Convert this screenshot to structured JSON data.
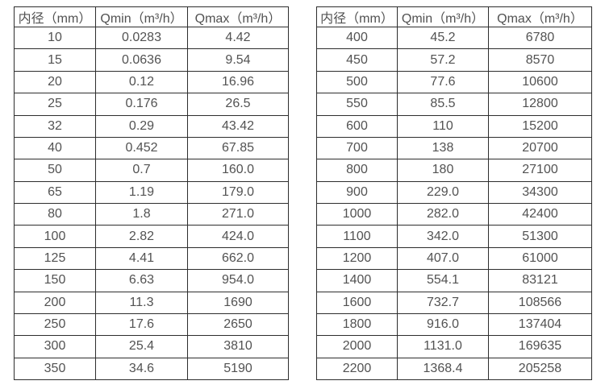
{
  "page": {
    "background_color": "#ffffff",
    "border_color": "#2d2d2d",
    "text_color": "#525252"
  },
  "tables": [
    {
      "name": "small-diameters",
      "headers": [
        "内径（mm）",
        "Qmin（m³/h）",
        "Qmax（m³/h）"
      ],
      "rows": [
        [
          "10",
          "0.0283",
          "4.42"
        ],
        [
          "15",
          "0.0636",
          "9.54"
        ],
        [
          "20",
          "0.12",
          "16.96"
        ],
        [
          "25",
          "0.176",
          "26.5"
        ],
        [
          "32",
          "0.29",
          "43.42"
        ],
        [
          "40",
          "0.452",
          "67.85"
        ],
        [
          "50",
          "0.7",
          "160.0"
        ],
        [
          "65",
          "1.19",
          "179.0"
        ],
        [
          "80",
          "1.8",
          "271.0"
        ],
        [
          "100",
          "2.82",
          "424.0"
        ],
        [
          "125",
          "4.41",
          "662.0"
        ],
        [
          "150",
          "6.63",
          "954.0"
        ],
        [
          "200",
          "11.3",
          "1690"
        ],
        [
          "250",
          "17.6",
          "2650"
        ],
        [
          "300",
          "25.4",
          "3810"
        ],
        [
          "350",
          "34.6",
          "5190"
        ]
      ]
    },
    {
      "name": "large-diameters",
      "headers": [
        "内径（mm）",
        "Qmin（m³/h）",
        "Qmax（m³/h）"
      ],
      "rows": [
        [
          "400",
          "45.2",
          "6780"
        ],
        [
          "450",
          "57.2",
          "8570"
        ],
        [
          "500",
          "77.6",
          "10600"
        ],
        [
          "550",
          "85.5",
          "12800"
        ],
        [
          "600",
          "110",
          "15200"
        ],
        [
          "700",
          "138",
          "20700"
        ],
        [
          "800",
          "180",
          "27100"
        ],
        [
          "900",
          "229.0",
          "34300"
        ],
        [
          "1000",
          "282.0",
          "42400"
        ],
        [
          "1100",
          "342.0",
          "51300"
        ],
        [
          "1200",
          "407.0",
          "61000"
        ],
        [
          "1400",
          "554.1",
          "83121"
        ],
        [
          "1600",
          "732.7",
          "108566"
        ],
        [
          "1800",
          "916.0",
          "137404"
        ],
        [
          "2000",
          "1131.0",
          "169635"
        ],
        [
          "2200",
          "1368.4",
          "205258"
        ]
      ]
    }
  ]
}
